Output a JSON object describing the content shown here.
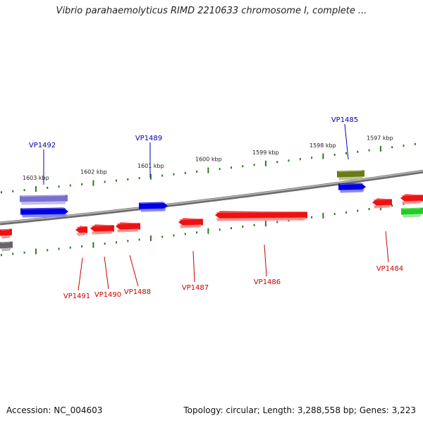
{
  "title": "Vibrio parahaemolyticus RIMD 2210633 chromosome I, complete ...",
  "footer": {
    "accession": "Accession: NC_004603",
    "summary": "Topology: circular; Length: 3,288,558 bp; Genes: 3,223"
  },
  "colors": {
    "backbone": "#8a8a8a",
    "forward_gene": "#0000e0",
    "forward_other": "#7a6fd0",
    "reverse_gene": "#ee1111",
    "rna": "#6b7a14",
    "green": "#22cc22",
    "tick": "#2a7a22",
    "label_forward": "#0000aa",
    "label_reverse": "#cc0000"
  },
  "kbp_labels": [
    "1603 kbp",
    "1602 kbp",
    "1601 kbp",
    "1600 kbp",
    "1599 kbp",
    "1598 kbp",
    "1597 kbp"
  ],
  "genes": [
    {
      "name": "VP1492",
      "strand": "forward"
    },
    {
      "name": "VP1489",
      "strand": "forward"
    },
    {
      "name": "VP1485",
      "strand": "forward"
    },
    {
      "name": "VP1491",
      "strand": "reverse"
    },
    {
      "name": "VP1490",
      "strand": "reverse"
    },
    {
      "name": "VP1488",
      "strand": "reverse"
    },
    {
      "name": "VP1487",
      "strand": "reverse"
    },
    {
      "name": "VP1486",
      "strand": "reverse"
    },
    {
      "name": "VP1484",
      "strand": "reverse"
    }
  ]
}
